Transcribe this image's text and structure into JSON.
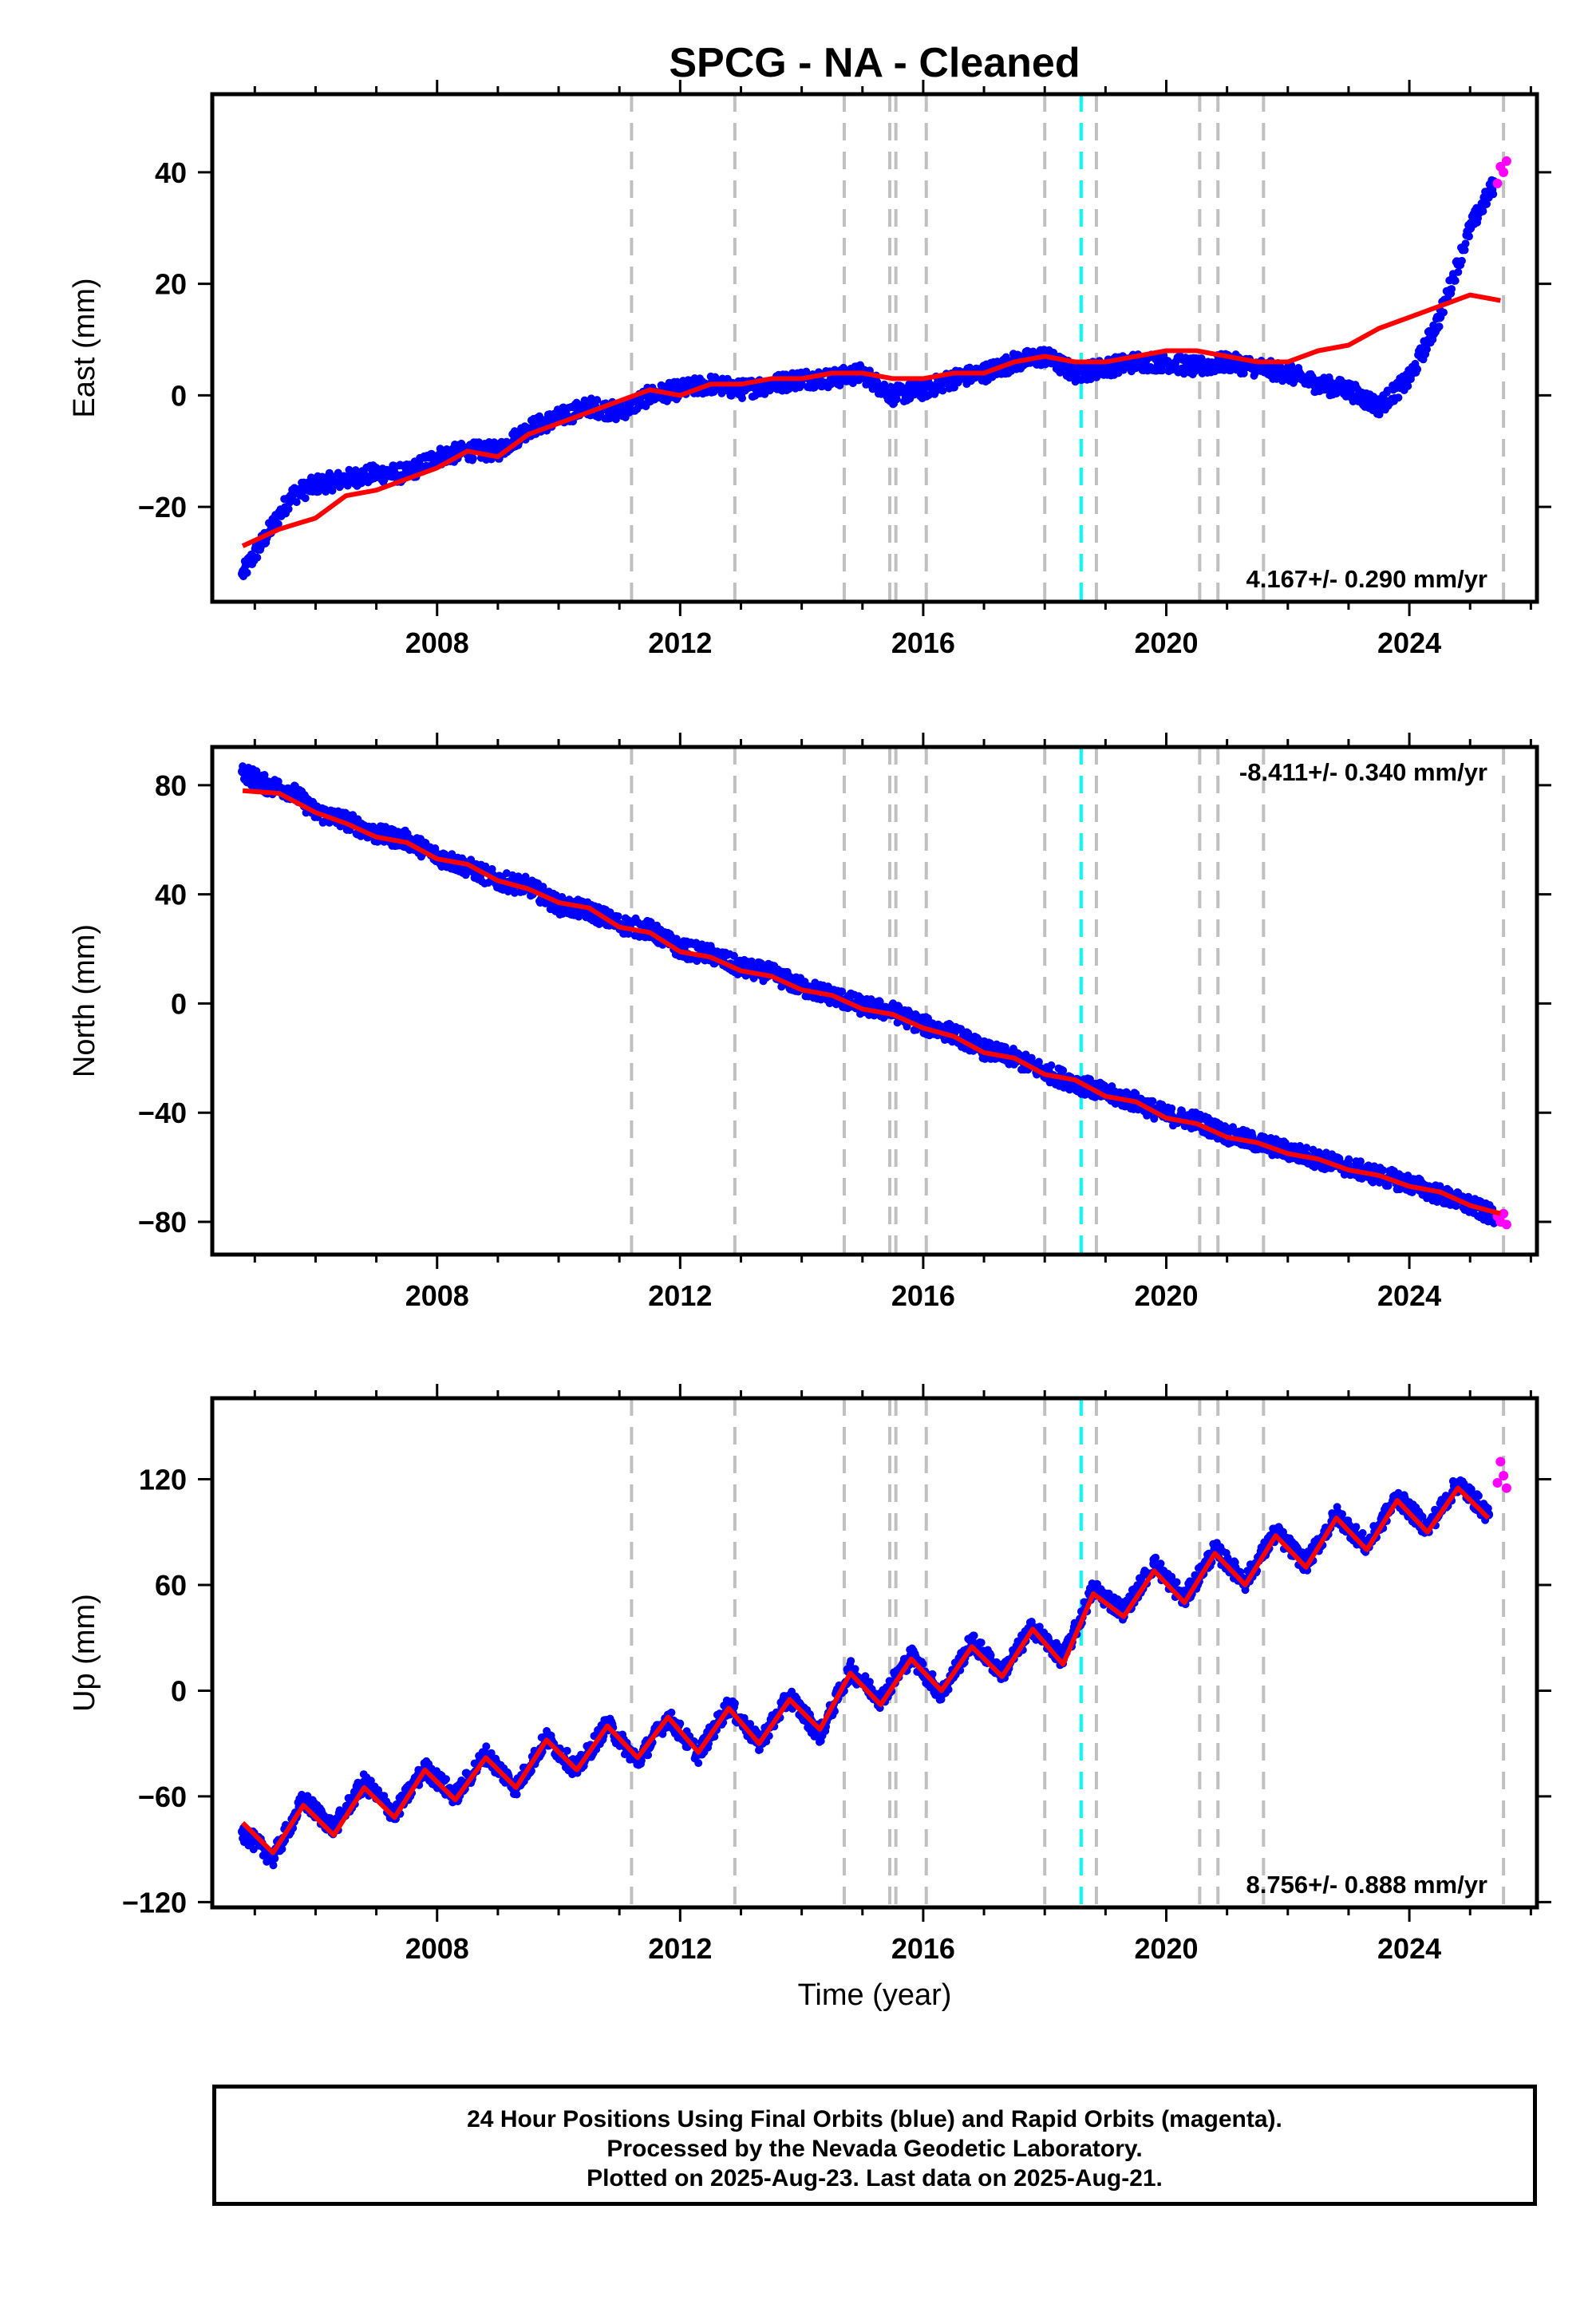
{
  "title": "SPCG  - NA - Cleaned",
  "footer": {
    "line1": "24 Hour Positions Using Final Orbits (blue) and Rapid Orbits (magenta).",
    "line2": "Processed by the Nevada Geodetic Laboratory.",
    "line3": "Plotted on 2025-Aug-23. Last data on 2025-Aug-21."
  },
  "colors": {
    "final_orbits": "#0000ff",
    "rapid_orbits": "#ff00ff",
    "model": "#ff0000",
    "equipment_change": "#c0c0c0",
    "earthquake": "#00ffff"
  },
  "chart_data": [
    {
      "type": "scatter",
      "panel": "east",
      "ylabel": "East (mm)",
      "xlabel": "",
      "xlim": [
        2004.3,
        2026.1
      ],
      "ylim": [
        -37,
        54
      ],
      "xticks": [
        2008,
        2012,
        2016,
        2020,
        2024
      ],
      "yticks": [
        -20,
        0,
        20,
        40
      ],
      "velocity_label": "4.167+/- 0.290 mm/yr",
      "velocity_label_position": "bottom-right",
      "model": {
        "x": [
          2004.8,
          2005.4,
          2006.0,
          2006.5,
          2007.0,
          2007.5,
          2008.0,
          2008.5,
          2009.0,
          2009.5,
          2010.0,
          2010.5,
          2011.0,
          2011.5,
          2012.0,
          2012.5,
          2013.0,
          2013.5,
          2014.0,
          2014.5,
          2015.0,
          2015.5,
          2016.0,
          2016.5,
          2017.0,
          2017.5,
          2018.0,
          2018.5,
          2019.0,
          2019.5,
          2020.0,
          2020.5,
          2021.0,
          2021.5,
          2022.0,
          2022.5,
          2023.0,
          2023.5,
          2024.0,
          2024.5,
          2025.0,
          2025.5
        ],
        "y": [
          -27,
          -24,
          -22,
          -18,
          -17,
          -15,
          -13,
          -10,
          -11,
          -7,
          -5,
          -3,
          -1,
          1,
          0,
          2,
          2,
          3,
          3,
          4,
          4,
          3,
          3,
          4,
          4,
          6,
          7,
          6,
          6,
          7,
          8,
          8,
          7,
          6,
          6,
          8,
          9,
          12,
          14,
          16,
          18,
          17
        ]
      },
      "final_series": {
        "x": [
          2004.8,
          2005.2,
          2005.6,
          2006.0,
          2006.5,
          2007.0,
          2007.5,
          2008.0,
          2008.5,
          2009.0,
          2009.5,
          2010.0,
          2010.5,
          2011.0,
          2011.5,
          2012.0,
          2012.5,
          2013.0,
          2013.5,
          2014.0,
          2014.5,
          2015.0,
          2015.5,
          2016.0,
          2016.5,
          2017.0,
          2017.5,
          2018.0,
          2018.5,
          2019.0,
          2019.5,
          2020.0,
          2020.5,
          2021.0,
          2021.5,
          2022.0,
          2022.5,
          2023.0,
          2023.5,
          2024.0,
          2024.5,
          2025.0,
          2025.4
        ],
        "y": [
          -32,
          -25,
          -18,
          -16,
          -15,
          -14,
          -14,
          -11,
          -10,
          -10,
          -6,
          -4,
          -2,
          -3,
          0,
          1,
          2,
          1,
          2,
          3,
          3,
          4,
          0,
          1,
          3,
          4,
          6,
          7,
          4,
          5,
          6,
          6,
          5,
          6,
          5,
          4,
          2,
          1,
          -2,
          3,
          14,
          30,
          38
        ]
      },
      "rapid_series": {
        "x": [
          2025.45,
          2025.5,
          2025.55,
          2025.6
        ],
        "y": [
          38,
          41,
          40,
          42
        ]
      },
      "equipment_change_dates": [
        2011.2,
        2012.9,
        2014.7,
        2015.45,
        2015.55,
        2016.05,
        2018.0,
        2018.85,
        2020.55,
        2020.85,
        2021.6,
        2025.55
      ],
      "earthquake_dates": [
        2018.6
      ]
    },
    {
      "type": "scatter",
      "panel": "north",
      "ylabel": "North (mm)",
      "xlabel": "",
      "xlim": [
        2004.3,
        2026.1
      ],
      "ylim": [
        -92,
        94
      ],
      "xticks": [
        2008,
        2012,
        2016,
        2020,
        2024
      ],
      "yticks": [
        -80,
        -40,
        0,
        40,
        80
      ],
      "velocity_label": "-8.411+/- 0.340 mm/yr",
      "velocity_label_position": "top-right",
      "model": {
        "x": [
          2004.8,
          2005.4,
          2006.0,
          2006.5,
          2007.0,
          2007.5,
          2008.0,
          2008.5,
          2009.0,
          2009.5,
          2010.0,
          2010.5,
          2011.0,
          2011.5,
          2012.0,
          2012.5,
          2013.0,
          2013.5,
          2014.0,
          2014.5,
          2015.0,
          2015.5,
          2016.0,
          2016.5,
          2017.0,
          2017.5,
          2018.0,
          2018.5,
          2019.0,
          2019.5,
          2020.0,
          2020.5,
          2021.0,
          2021.5,
          2022.0,
          2022.5,
          2023.0,
          2023.5,
          2024.0,
          2024.5,
          2025.0,
          2025.5
        ],
        "y": [
          78,
          77,
          70,
          66,
          61,
          59,
          53,
          51,
          45,
          42,
          37,
          35,
          28,
          26,
          19,
          17,
          12,
          10,
          5,
          3,
          -2,
          -4,
          -9,
          -12,
          -18,
          -20,
          -26,
          -28,
          -34,
          -36,
          -42,
          -44,
          -49,
          -51,
          -55,
          -57,
          -61,
          -63,
          -67,
          -69,
          -74,
          -77
        ]
      },
      "final_series": {
        "x": [
          2004.8,
          2005.2,
          2005.6,
          2006.0,
          2006.5,
          2007.0,
          2007.5,
          2008.0,
          2008.5,
          2009.0,
          2009.5,
          2010.0,
          2010.5,
          2011.0,
          2011.5,
          2012.0,
          2012.5,
          2013.0,
          2013.5,
          2014.0,
          2014.5,
          2015.0,
          2015.5,
          2016.0,
          2016.5,
          2017.0,
          2017.5,
          2018.0,
          2018.5,
          2019.0,
          2019.5,
          2020.0,
          2020.5,
          2021.0,
          2021.5,
          2022.0,
          2022.5,
          2023.0,
          2023.5,
          2024.0,
          2024.5,
          2025.0,
          2025.4
        ],
        "y": [
          85,
          80,
          78,
          70,
          67,
          62,
          60,
          54,
          50,
          45,
          43,
          36,
          34,
          29,
          27,
          20,
          18,
          13,
          11,
          6,
          3,
          -1,
          -3,
          -8,
          -11,
          -17,
          -20,
          -25,
          -29,
          -33,
          -36,
          -41,
          -43,
          -48,
          -51,
          -54,
          -57,
          -60,
          -63,
          -66,
          -70,
          -74,
          -78
        ]
      },
      "rapid_series": {
        "x": [
          2025.45,
          2025.5,
          2025.55,
          2025.6
        ],
        "y": [
          -78,
          -80,
          -77,
          -81
        ]
      },
      "equipment_change_dates": [
        2011.2,
        2012.9,
        2014.7,
        2015.45,
        2015.55,
        2016.05,
        2018.0,
        2018.85,
        2020.55,
        2020.85,
        2021.6,
        2025.55
      ],
      "earthquake_dates": [
        2018.6
      ]
    },
    {
      "type": "scatter",
      "panel": "up",
      "ylabel": "Up (mm)",
      "xlabel": "Time (year)",
      "xlim": [
        2004.3,
        2026.1
      ],
      "ylim": [
        -123,
        166
      ],
      "xticks": [
        2008,
        2012,
        2016,
        2020,
        2024
      ],
      "yticks": [
        -120,
        -60,
        0,
        60,
        120
      ],
      "velocity_label": "8.756+/- 0.888 mm/yr",
      "velocity_label_position": "bottom-right",
      "model": {
        "x": [
          2004.8,
          2005.3,
          2005.8,
          2006.3,
          2006.8,
          2007.3,
          2007.8,
          2008.3,
          2008.8,
          2009.3,
          2009.8,
          2010.3,
          2010.8,
          2011.3,
          2011.8,
          2012.3,
          2012.8,
          2013.3,
          2013.8,
          2014.3,
          2014.8,
          2015.3,
          2015.8,
          2016.3,
          2016.8,
          2017.3,
          2017.8,
          2018.3,
          2018.8,
          2019.3,
          2019.8,
          2020.3,
          2020.8,
          2021.3,
          2021.8,
          2022.3,
          2022.8,
          2023.3,
          2023.8,
          2024.3,
          2024.8,
          2025.3
        ],
        "y": [
          -75,
          -92,
          -65,
          -82,
          -55,
          -72,
          -45,
          -62,
          -38,
          -55,
          -28,
          -45,
          -20,
          -38,
          -15,
          -35,
          -10,
          -30,
          -5,
          -22,
          10,
          -8,
          18,
          0,
          25,
          8,
          35,
          15,
          55,
          42,
          68,
          50,
          78,
          60,
          88,
          70,
          98,
          80,
          108,
          90,
          115,
          98
        ]
      },
      "final_series": {
        "x": [
          2004.8,
          2005.3,
          2005.8,
          2006.3,
          2006.8,
          2007.3,
          2007.8,
          2008.3,
          2008.8,
          2009.3,
          2009.8,
          2010.3,
          2010.8,
          2011.3,
          2011.8,
          2012.3,
          2012.8,
          2013.3,
          2013.8,
          2014.3,
          2014.8,
          2015.3,
          2015.8,
          2016.3,
          2016.8,
          2017.3,
          2017.8,
          2018.3,
          2018.8,
          2019.3,
          2019.8,
          2020.3,
          2020.8,
          2021.3,
          2021.8,
          2022.3,
          2022.8,
          2023.3,
          2023.8,
          2024.3,
          2024.8,
          2025.3
        ],
        "y": [
          -80,
          -95,
          -62,
          -78,
          -52,
          -70,
          -44,
          -60,
          -36,
          -55,
          -27,
          -45,
          -19,
          -40,
          -15,
          -36,
          -8,
          -30,
          -3,
          -25,
          12,
          -5,
          20,
          -2,
          28,
          10,
          36,
          18,
          58,
          45,
          72,
          52,
          80,
          62,
          90,
          72,
          100,
          82,
          110,
          92,
          118,
          100
        ]
      },
      "rapid_series": {
        "x": [
          2025.45,
          2025.5,
          2025.55,
          2025.6
        ],
        "y": [
          118,
          130,
          122,
          115
        ]
      },
      "equipment_change_dates": [
        2011.2,
        2012.9,
        2014.7,
        2015.45,
        2015.55,
        2016.05,
        2018.0,
        2018.85,
        2020.55,
        2020.85,
        2021.6,
        2025.55
      ],
      "earthquake_dates": [
        2018.6
      ]
    }
  ]
}
